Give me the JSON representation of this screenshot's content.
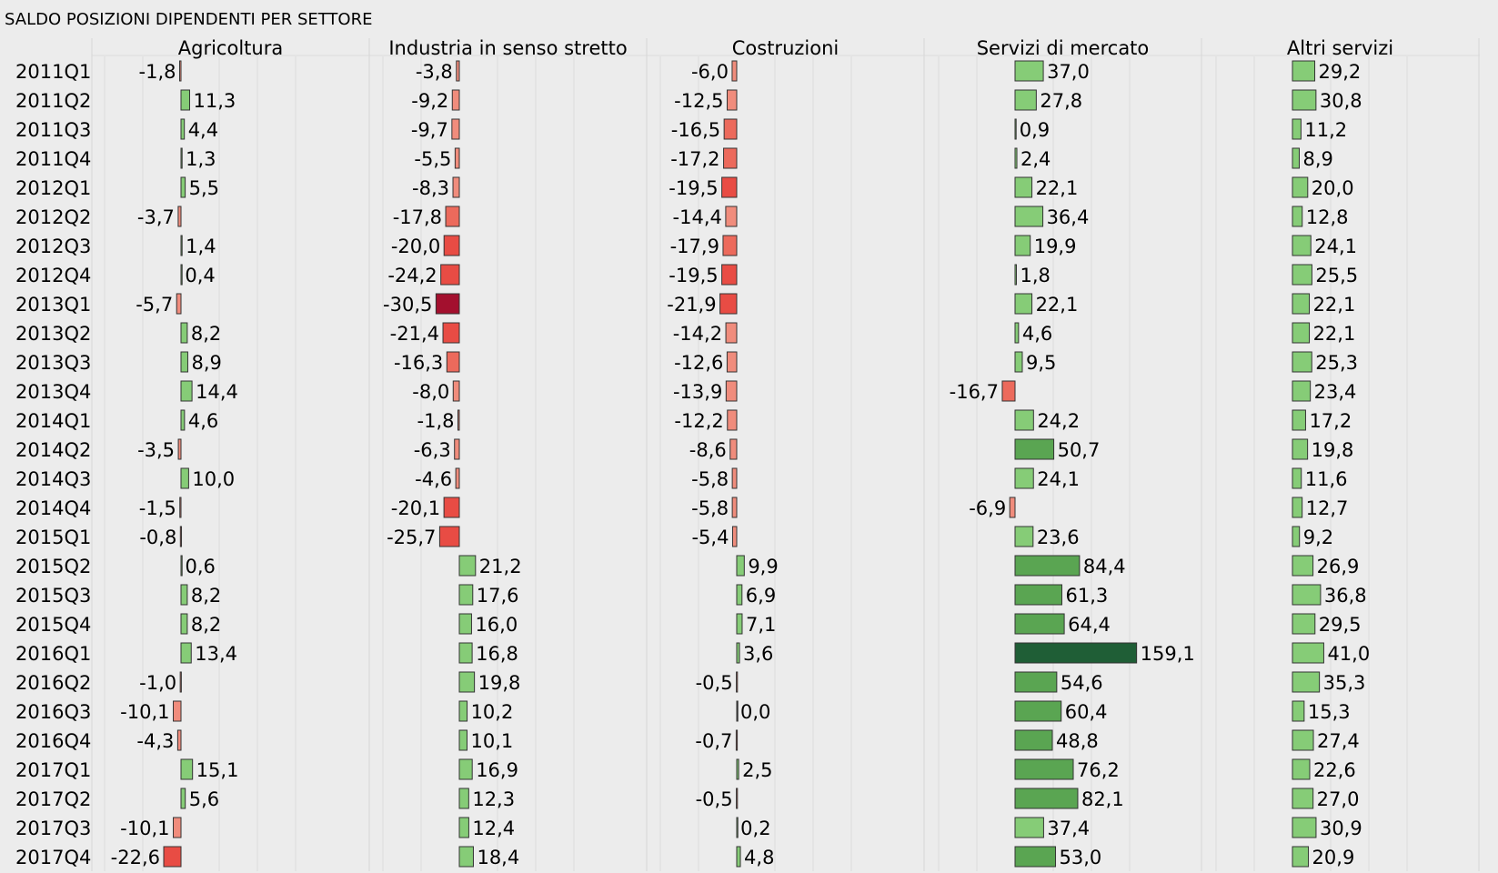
{
  "chart_data": {
    "type": "bar",
    "orientation": "horizontal",
    "title": "SALDO POSIZIONI DIPENDENTI PER SETTORE",
    "categories": [
      "2011Q1",
      "2011Q2",
      "2011Q3",
      "2011Q4",
      "2012Q1",
      "2012Q2",
      "2012Q3",
      "2012Q4",
      "2013Q1",
      "2013Q2",
      "2013Q3",
      "2013Q4",
      "2014Q1",
      "2014Q2",
      "2014Q3",
      "2014Q4",
      "2015Q1",
      "2015Q2",
      "2015Q3",
      "2015Q4",
      "2016Q1",
      "2016Q2",
      "2016Q3",
      "2016Q4",
      "2017Q1",
      "2017Q2",
      "2017Q3",
      "2017Q4"
    ],
    "series": [
      {
        "name": "Agricoltura",
        "values": [
          -1.8,
          11.3,
          4.4,
          1.3,
          5.5,
          -3.7,
          1.4,
          0.4,
          -5.7,
          8.2,
          8.9,
          14.4,
          4.6,
          -3.5,
          10.0,
          -1.5,
          -0.8,
          0.6,
          8.2,
          8.2,
          13.4,
          -1.0,
          -10.1,
          -4.3,
          15.1,
          5.6,
          -10.1,
          -22.6
        ]
      },
      {
        "name": "Industria in senso stretto",
        "values": [
          -3.8,
          -9.2,
          -9.7,
          -5.5,
          -8.3,
          -17.8,
          -20.0,
          -24.2,
          -30.5,
          -21.4,
          -16.3,
          -8.0,
          -1.8,
          -6.3,
          -4.6,
          -20.1,
          -25.7,
          21.2,
          17.6,
          16.0,
          16.8,
          19.8,
          10.2,
          10.1,
          16.9,
          12.3,
          12.4,
          18.4
        ]
      },
      {
        "name": "Costruzioni",
        "values": [
          -6.0,
          -12.5,
          -16.5,
          -17.2,
          -19.5,
          -14.4,
          -17.9,
          -19.5,
          -21.9,
          -14.2,
          -12.6,
          -13.9,
          -12.2,
          -8.6,
          -5.8,
          -5.8,
          -5.4,
          9.9,
          6.9,
          7.1,
          3.6,
          -0.5,
          0.0,
          -0.7,
          2.5,
          -0.5,
          0.2,
          4.8
        ]
      },
      {
        "name": "Servizi di mercato",
        "values": [
          37.0,
          27.8,
          0.9,
          2.4,
          22.1,
          36.4,
          19.9,
          1.8,
          22.1,
          4.6,
          9.5,
          -16.7,
          24.2,
          50.7,
          24.1,
          -6.9,
          23.6,
          84.4,
          61.3,
          64.4,
          159.1,
          54.6,
          60.4,
          48.8,
          76.2,
          82.1,
          37.4,
          53.0
        ]
      },
      {
        "name": "Altri servizi",
        "values": [
          29.2,
          30.8,
          11.2,
          8.9,
          20.0,
          12.8,
          24.1,
          25.5,
          22.1,
          22.1,
          25.3,
          23.4,
          17.2,
          19.8,
          11.6,
          12.7,
          9.2,
          26.9,
          36.8,
          29.5,
          41.0,
          35.3,
          15.3,
          27.4,
          22.6,
          27.0,
          30.9,
          20.9
        ]
      }
    ],
    "grid": true,
    "legend": "none",
    "colors": {
      "positive_light": "#86cc77",
      "positive_mid": "#5aa552",
      "positive_dark": "#1f5e36",
      "negative_light": "#f08c7c",
      "negative_mid": "#e84c44",
      "negative_dark": "#a3102e",
      "bar_border": "#333333",
      "background": "#ececec",
      "grid": "#dcdcdc"
    }
  }
}
